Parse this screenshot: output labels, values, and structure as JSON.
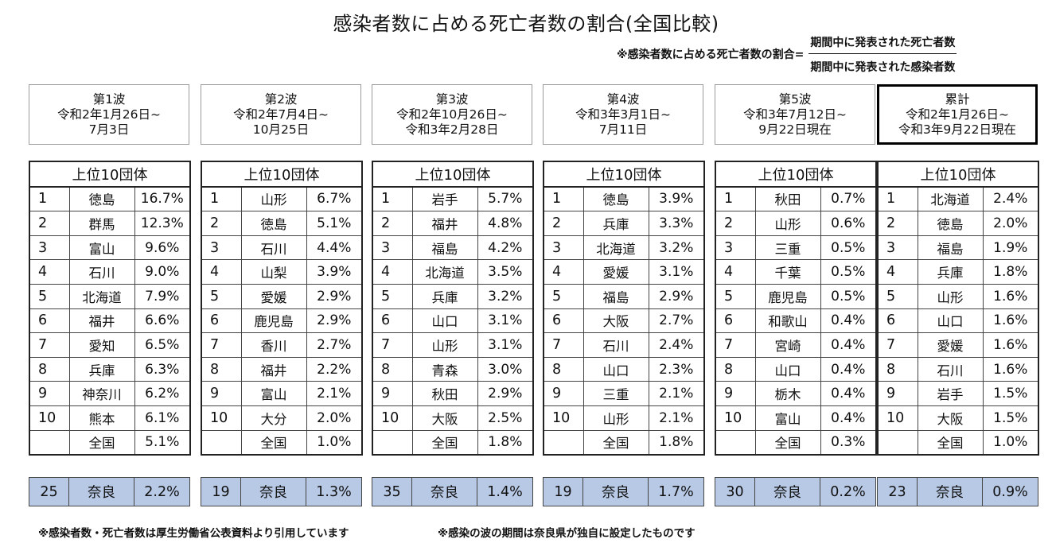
{
  "title": "感染者数に占める死亡者数の割合(全国比較)",
  "formula": {
    "lhs": "※感染者数に占める死亡者数の割合=",
    "numerator": "期間中に発表された死亡者数",
    "denominator": "期間中に発表された感染者数"
  },
  "table_header": "上位10団体",
  "panels": [
    {
      "name": "第1波",
      "period_line1": "令和2年1月26日~",
      "period_line2": "7月3日",
      "rows": [
        {
          "rank": "1",
          "pref": "徳島",
          "pct": "16.7%"
        },
        {
          "rank": "2",
          "pref": "群馬",
          "pct": "12.3%"
        },
        {
          "rank": "3",
          "pref": "富山",
          "pct": "9.6%"
        },
        {
          "rank": "4",
          "pref": "石川",
          "pct": "9.0%"
        },
        {
          "rank": "5",
          "pref": "北海道",
          "pct": "7.9%"
        },
        {
          "rank": "6",
          "pref": "福井",
          "pct": "6.6%"
        },
        {
          "rank": "7",
          "pref": "愛知",
          "pct": "6.5%"
        },
        {
          "rank": "8",
          "pref": "兵庫",
          "pct": "6.3%"
        },
        {
          "rank": "9",
          "pref": "神奈川",
          "pct": "6.2%"
        },
        {
          "rank": "10",
          "pref": "熊本",
          "pct": "6.1%"
        },
        {
          "rank": "",
          "pref": "全国",
          "pct": "5.1%"
        }
      ],
      "nara": {
        "rank": "25",
        "pref": "奈良",
        "pct": "2.2%"
      }
    },
    {
      "name": "第2波",
      "period_line1": "令和2年7月4日~",
      "period_line2": "10月25日",
      "rows": [
        {
          "rank": "1",
          "pref": "山形",
          "pct": "6.7%"
        },
        {
          "rank": "2",
          "pref": "徳島",
          "pct": "5.1%"
        },
        {
          "rank": "3",
          "pref": "石川",
          "pct": "4.4%"
        },
        {
          "rank": "4",
          "pref": "山梨",
          "pct": "3.9%"
        },
        {
          "rank": "5",
          "pref": "愛媛",
          "pct": "2.9%"
        },
        {
          "rank": "6",
          "pref": "鹿児島",
          "pct": "2.9%"
        },
        {
          "rank": "7",
          "pref": "香川",
          "pct": "2.7%"
        },
        {
          "rank": "8",
          "pref": "福井",
          "pct": "2.2%"
        },
        {
          "rank": "9",
          "pref": "富山",
          "pct": "2.1%"
        },
        {
          "rank": "10",
          "pref": "大分",
          "pct": "2.0%"
        },
        {
          "rank": "",
          "pref": "全国",
          "pct": "1.0%"
        }
      ],
      "nara": {
        "rank": "19",
        "pref": "奈良",
        "pct": "1.3%"
      }
    },
    {
      "name": "第3波",
      "period_line1": "令和2年10月26日~",
      "period_line2": "令和3年2月28日",
      "rows": [
        {
          "rank": "1",
          "pref": "岩手",
          "pct": "5.7%"
        },
        {
          "rank": "2",
          "pref": "福井",
          "pct": "4.8%"
        },
        {
          "rank": "3",
          "pref": "福島",
          "pct": "4.2%"
        },
        {
          "rank": "4",
          "pref": "北海道",
          "pct": "3.5%"
        },
        {
          "rank": "5",
          "pref": "兵庫",
          "pct": "3.2%"
        },
        {
          "rank": "6",
          "pref": "山口",
          "pct": "3.1%"
        },
        {
          "rank": "7",
          "pref": "山形",
          "pct": "3.1%"
        },
        {
          "rank": "8",
          "pref": "青森",
          "pct": "3.0%"
        },
        {
          "rank": "9",
          "pref": "秋田",
          "pct": "2.9%"
        },
        {
          "rank": "10",
          "pref": "大阪",
          "pct": "2.5%"
        },
        {
          "rank": "",
          "pref": "全国",
          "pct": "1.8%"
        }
      ],
      "nara": {
        "rank": "35",
        "pref": "奈良",
        "pct": "1.4%"
      }
    },
    {
      "name": "第4波",
      "period_line1": "令和3年3月1日~",
      "period_line2": "7月11日",
      "rows": [
        {
          "rank": "1",
          "pref": "徳島",
          "pct": "3.9%"
        },
        {
          "rank": "2",
          "pref": "兵庫",
          "pct": "3.3%"
        },
        {
          "rank": "3",
          "pref": "北海道",
          "pct": "3.2%"
        },
        {
          "rank": "4",
          "pref": "愛媛",
          "pct": "3.1%"
        },
        {
          "rank": "5",
          "pref": "福島",
          "pct": "2.9%"
        },
        {
          "rank": "6",
          "pref": "大阪",
          "pct": "2.7%"
        },
        {
          "rank": "7",
          "pref": "石川",
          "pct": "2.4%"
        },
        {
          "rank": "8",
          "pref": "山口",
          "pct": "2.3%"
        },
        {
          "rank": "9",
          "pref": "三重",
          "pct": "2.1%"
        },
        {
          "rank": "10",
          "pref": "山形",
          "pct": "2.1%"
        },
        {
          "rank": "",
          "pref": "全国",
          "pct": "1.8%"
        }
      ],
      "nara": {
        "rank": "19",
        "pref": "奈良",
        "pct": "1.7%"
      }
    },
    {
      "name": "第5波",
      "period_line1": "令和3年7月12日~",
      "period_line2": "9月22日現在",
      "rows": [
        {
          "rank": "1",
          "pref": "秋田",
          "pct": "0.7%"
        },
        {
          "rank": "2",
          "pref": "山形",
          "pct": "0.6%"
        },
        {
          "rank": "3",
          "pref": "三重",
          "pct": "0.5%"
        },
        {
          "rank": "4",
          "pref": "千葉",
          "pct": "0.5%"
        },
        {
          "rank": "5",
          "pref": "鹿児島",
          "pct": "0.5%"
        },
        {
          "rank": "6",
          "pref": "和歌山",
          "pct": "0.4%"
        },
        {
          "rank": "7",
          "pref": "宮崎",
          "pct": "0.4%"
        },
        {
          "rank": "8",
          "pref": "山口",
          "pct": "0.4%"
        },
        {
          "rank": "9",
          "pref": "栃木",
          "pct": "0.4%"
        },
        {
          "rank": "10",
          "pref": "富山",
          "pct": "0.4%"
        },
        {
          "rank": "",
          "pref": "全国",
          "pct": "0.3%"
        }
      ],
      "nara": {
        "rank": "30",
        "pref": "奈良",
        "pct": "0.2%"
      }
    },
    {
      "name": "累計",
      "period_line1": "令和2年1月26日~",
      "period_line2": "令和3年9月22日現在",
      "rows": [
        {
          "rank": "1",
          "pref": "北海道",
          "pct": "2.4%"
        },
        {
          "rank": "2",
          "pref": "徳島",
          "pct": "2.0%"
        },
        {
          "rank": "3",
          "pref": "福島",
          "pct": "1.9%"
        },
        {
          "rank": "4",
          "pref": "兵庫",
          "pct": "1.8%"
        },
        {
          "rank": "5",
          "pref": "山形",
          "pct": "1.6%"
        },
        {
          "rank": "6",
          "pref": "山口",
          "pct": "1.6%"
        },
        {
          "rank": "7",
          "pref": "愛媛",
          "pct": "1.6%"
        },
        {
          "rank": "8",
          "pref": "石川",
          "pct": "1.6%"
        },
        {
          "rank": "9",
          "pref": "岩手",
          "pct": "1.5%"
        },
        {
          "rank": "10",
          "pref": "大阪",
          "pct": "1.5%"
        },
        {
          "rank": "",
          "pref": "全国",
          "pct": "1.0%"
        }
      ],
      "nara": {
        "rank": "23",
        "pref": "奈良",
        "pct": "0.9%"
      }
    }
  ],
  "footnotes": [
    "※感染者数・死亡者数は厚生労働省公表資料より引用しています",
    "※感染の波の期間は奈良県が独自に設定したものです"
  ]
}
